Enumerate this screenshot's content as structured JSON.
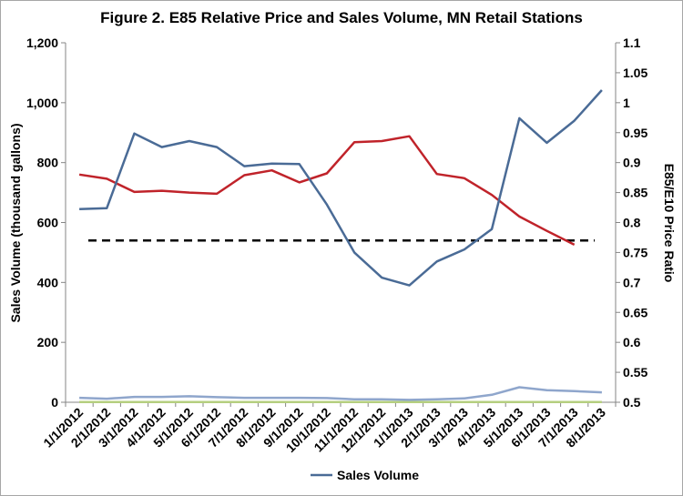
{
  "chart_data": {
    "type": "line",
    "title": "Figure 2. E85 Relative Price and Sales Volume, MN Retail Stations",
    "ylabel": "Sales Volume (thousand gallons)",
    "y2label": "E85/E10 Price Ratio",
    "ylim": [
      0,
      1200
    ],
    "y2lim": [
      0.5,
      1.1
    ],
    "y_ticks": [
      "0",
      "200",
      "400",
      "600",
      "800",
      "1,000",
      "1,200"
    ],
    "y2_ticks": [
      "0.5",
      "0.55",
      "0.6",
      "0.65",
      "0.7",
      "0.75",
      "0.8",
      "0.85",
      "0.9",
      "0.95",
      "1",
      "1.05",
      "1.1"
    ],
    "categories": [
      "1/1/2012",
      "2/1/2012",
      "3/1/2012",
      "4/1/2012",
      "5/1/2012",
      "6/1/2012",
      "7/1/2012",
      "8/1/2012",
      "9/1/2012",
      "10/1/2012",
      "11/1/2012",
      "12/1/2012",
      "1/1/2013",
      "2/1/2013",
      "3/1/2013",
      "4/1/2013",
      "5/1/2013",
      "6/1/2013",
      "7/1/2013",
      "8/1/2013"
    ],
    "series": [
      {
        "name": "Sales Volume",
        "axis": "left",
        "color": "#4a6b96",
        "values": [
          645,
          648,
          897,
          852,
          872,
          852,
          788,
          797,
          795,
          660,
          500,
          416,
          390,
          470,
          510,
          578,
          948,
          866,
          940,
          1042
        ],
        "in_legend": true
      },
      {
        "axis": "right",
        "color": "#c0232a",
        "values": [
          0.88,
          0.873,
          0.851,
          0.853,
          0.85,
          0.848,
          0.879,
          0.887,
          0.867,
          0.882,
          0.934,
          0.936,
          0.944,
          0.881,
          0.874,
          0.846,
          0.81,
          0.786,
          0.763,
          null
        ]
      },
      {
        "axis": "left",
        "color": "#8fa6cc",
        "values": [
          15,
          12,
          18,
          18,
          20,
          17,
          15,
          15,
          15,
          14,
          10,
          10,
          8,
          10,
          13,
          25,
          50,
          40,
          37,
          33
        ]
      },
      {
        "axis": "left",
        "color": "#b5cf7f",
        "values": [
          1,
          1,
          1,
          1,
          1,
          1,
          1,
          1,
          1,
          1,
          1,
          1,
          1,
          1,
          1,
          1,
          1,
          1,
          1,
          1
        ]
      },
      {
        "axis": "right",
        "color": "#000000",
        "dashed": true,
        "values": [
          0.77,
          0.77,
          0.77,
          0.77,
          0.77,
          0.77,
          0.77,
          0.77,
          0.77,
          0.77,
          0.77,
          0.77,
          0.77,
          0.77,
          0.77,
          0.77,
          0.77,
          0.77,
          0.77,
          0.77
        ]
      }
    ],
    "legend": {
      "placement": "bottom",
      "label": "Sales Volume"
    },
    "grid": false
  }
}
